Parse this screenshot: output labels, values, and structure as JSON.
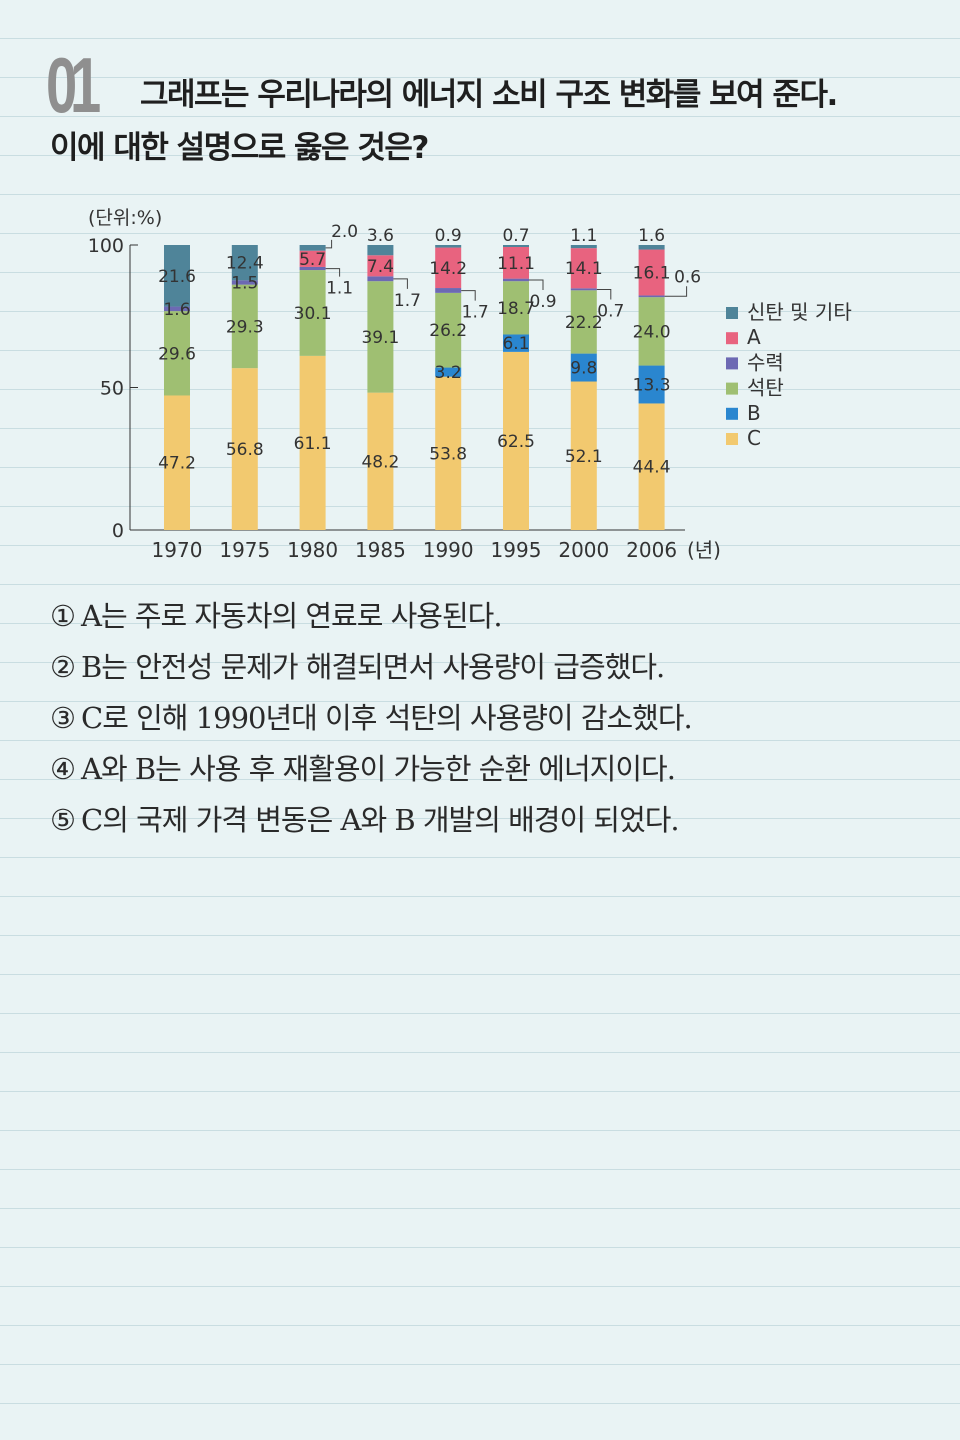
{
  "question": {
    "number": "01",
    "line1": "그래프는 우리나라의 에너지 소비 구조 변화를 보여 준다.",
    "line2": "이에 대한 설명으로 옳은 것은?"
  },
  "chart_data": {
    "type": "bar",
    "stacked": true,
    "unit_label": "(단위:%)",
    "x_unit": "(년)",
    "ylim": [
      0,
      100
    ],
    "yticks": [
      "0",
      "50",
      "100"
    ],
    "categories": [
      "1970",
      "1975",
      "1980",
      "1985",
      "1990",
      "1995",
      "2000",
      "2006"
    ],
    "series": [
      {
        "name": "C",
        "color": "#f2c96f",
        "values": [
          47.2,
          56.8,
          61.1,
          48.2,
          53.8,
          62.5,
          52.1,
          44.4
        ]
      },
      {
        "name": "B",
        "color": "#2a86cf",
        "values": [
          0,
          0,
          0,
          0,
          3.2,
          6.1,
          9.8,
          13.3
        ]
      },
      {
        "name": "석탄",
        "color": "#9fbf72",
        "values": [
          29.6,
          29.3,
          30.1,
          39.1,
          26.2,
          18.7,
          22.2,
          24.0
        ]
      },
      {
        "name": "수력",
        "color": "#6d69b3",
        "values": [
          1.6,
          1.5,
          1.1,
          1.7,
          1.7,
          0.9,
          0.7,
          0.6
        ]
      },
      {
        "name": "A",
        "color": "#e8637f",
        "values": [
          0,
          0,
          5.7,
          7.4,
          14.2,
          11.1,
          14.1,
          16.1
        ]
      },
      {
        "name": "신탄 및 기타",
        "color": "#4f8499",
        "values": [
          21.6,
          12.4,
          2.0,
          3.6,
          0.9,
          0.7,
          1.1,
          1.6
        ]
      }
    ],
    "bar_labels": [
      [
        "47.2",
        "",
        "29.6",
        "1.6",
        "",
        "21.6"
      ],
      [
        "56.8",
        "",
        "29.3",
        "1.5",
        "",
        "12.4"
      ],
      [
        "61.1",
        "",
        "30.1",
        "1.1",
        "5.7",
        "2.0"
      ],
      [
        "48.2",
        "",
        "39.1",
        "1.7",
        "7.4",
        "3.6"
      ],
      [
        "53.8",
        "3.2",
        "26.2",
        "1.7",
        "14.2",
        "0.9"
      ],
      [
        "62.5",
        "6.1",
        "18.7",
        "0.9",
        "11.1",
        "0.7"
      ],
      [
        "52.1",
        "9.8",
        "22.2",
        "0.7",
        "14.1",
        "1.1"
      ],
      [
        "44.4",
        "13.3",
        "24.0",
        "0.6",
        "16.1",
        "1.6"
      ]
    ],
    "legend_order": [
      "신탄 및 기타",
      "A",
      "수력",
      "석탄",
      "B",
      "C"
    ],
    "legend_position": "right"
  },
  "choices": [
    {
      "num": "①",
      "text": "A는 주로 자동차의 연료로 사용된다."
    },
    {
      "num": "②",
      "text": "B는 안전성 문제가 해결되면서 사용량이 급증했다."
    },
    {
      "num": "③",
      "text": "C로 인해 1990년대 이후 석탄의 사용량이 감소했다."
    },
    {
      "num": "④",
      "text": "A와 B는 사용 후 재활용이 가능한 순환 에너지이다."
    },
    {
      "num": "⑤",
      "text": "C의 국제 가격 변동은 A와 B 개발의 배경이 되었다."
    }
  ]
}
